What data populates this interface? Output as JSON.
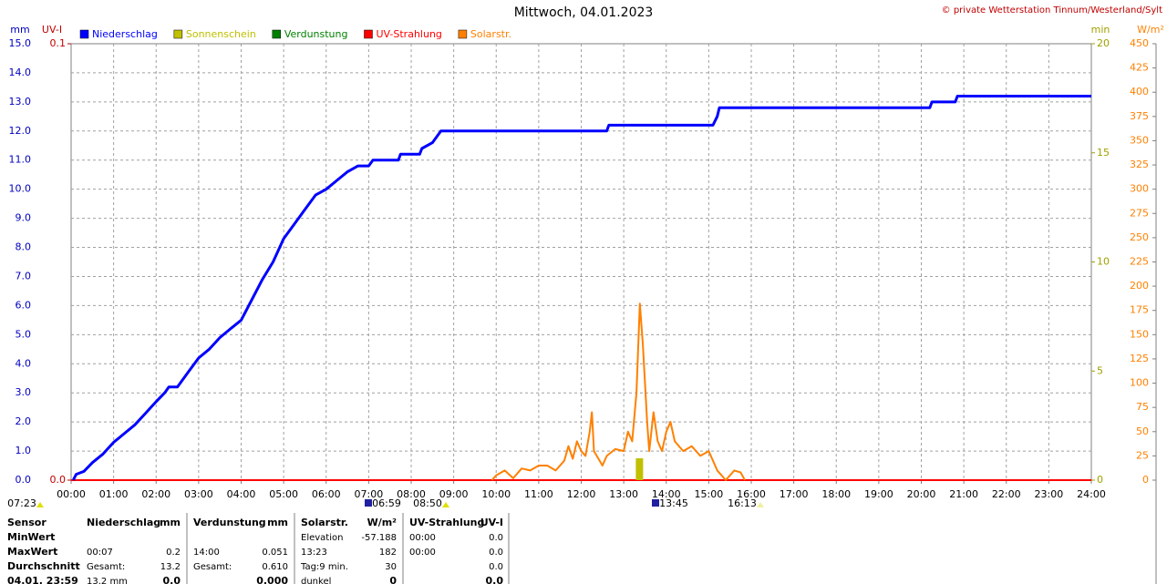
{
  "chart_data": {
    "type": "line",
    "title": "Mittwoch, 04.01.2023",
    "copyright": "© private Wetterstation Tinnum/Westerland/Sylt",
    "xlim": [
      0,
      24
    ],
    "xticks": [
      {
        "value": 0,
        "label": "00:00"
      },
      {
        "value": 1,
        "label": "01:00"
      },
      {
        "value": 2,
        "label": "02:00"
      },
      {
        "value": 3,
        "label": "03:00"
      },
      {
        "value": 4,
        "label": "04:00"
      },
      {
        "value": 5,
        "label": "05:00"
      },
      {
        "value": 6,
        "label": "06:00"
      },
      {
        "value": 7,
        "label": "07:00"
      },
      {
        "value": 8,
        "label": "08:00"
      },
      {
        "value": 9,
        "label": "09:00"
      },
      {
        "value": 10,
        "label": "10:00"
      },
      {
        "value": 11,
        "label": "11:00"
      },
      {
        "value": 12,
        "label": "12:00"
      },
      {
        "value": 13,
        "label": "13:00"
      },
      {
        "value": 14,
        "label": "14:00"
      },
      {
        "value": 15,
        "label": "15:00"
      },
      {
        "value": 16,
        "label": "16:00"
      },
      {
        "value": 17,
        "label": "17:00"
      },
      {
        "value": 18,
        "label": "18:00"
      },
      {
        "value": 19,
        "label": "19:00"
      },
      {
        "value": 20,
        "label": "20:00"
      },
      {
        "value": 21,
        "label": "21:00"
      },
      {
        "value": 22,
        "label": "22:00"
      },
      {
        "value": 23,
        "label": "23:00"
      },
      {
        "value": 24,
        "label": "24:00"
      }
    ],
    "ylabel": "mm",
    "ylim": [
      0,
      15
    ],
    "yticks": [
      {
        "value": 0,
        "label": "0.0"
      },
      {
        "value": 1,
        "label": "1.0"
      },
      {
        "value": 2,
        "label": "2.0"
      },
      {
        "value": 3,
        "label": "3.0"
      },
      {
        "value": 4,
        "label": "4.0"
      },
      {
        "value": 5,
        "label": "5.0"
      },
      {
        "value": 6,
        "label": "6.0"
      },
      {
        "value": 7,
        "label": "7.0"
      },
      {
        "value": 8,
        "label": "8.0"
      },
      {
        "value": 9,
        "label": "9.0"
      },
      {
        "value": 10,
        "label": "10.0"
      },
      {
        "value": 11,
        "label": "11.0"
      },
      {
        "value": 12,
        "label": "12.0"
      },
      {
        "value": 13,
        "label": "13.0"
      },
      {
        "value": 14,
        "label": "14.0"
      },
      {
        "value": 15,
        "label": "15.0"
      }
    ],
    "uvlabel": "UV-I",
    "uvlim": [
      0,
      0.1
    ],
    "uvticks": [
      {
        "value": 0,
        "label": "0.0"
      },
      0.1
    ],
    "y2label": "min",
    "y2lim": [
      0,
      20
    ],
    "y2ticks": [
      0,
      5,
      10,
      15,
      20
    ],
    "y3label": "W/m²",
    "y3lim": [
      0,
      450
    ],
    "y3ticks": [
      0,
      25,
      50,
      75,
      100,
      125,
      150,
      175,
      200,
      225,
      250,
      275,
      300,
      325,
      350,
      375,
      400,
      425,
      450
    ],
    "grid": true,
    "sun_labels": [
      "07:23",
      "06:59",
      "08:50",
      "13:45",
      "16:13"
    ],
    "series": [
      {
        "name": "Niederschlag",
        "color": "#0000ff",
        "axis": "y",
        "type": "line",
        "x": [
          0.05,
          0.12,
          0.3,
          0.5,
          0.75,
          1,
          1.25,
          1.5,
          1.75,
          2,
          2.2,
          2.3,
          2.5,
          2.75,
          3,
          3.25,
          3.5,
          3.75,
          4,
          4.25,
          4.5,
          4.75,
          5,
          5.25,
          5.5,
          5.75,
          6,
          6.25,
          6.5,
          6.75,
          7,
          7.1,
          7.7,
          7.75,
          8.2,
          8.25,
          8.5,
          8.7,
          12.6,
          12.65,
          15.1,
          15.2,
          15.25,
          20.2,
          20.25,
          20.8,
          20.85,
          24
        ],
        "values": [
          0,
          0.2,
          0.3,
          0.6,
          0.9,
          1.3,
          1.6,
          1.9,
          2.3,
          2.7,
          3.0,
          3.2,
          3.2,
          3.7,
          4.2,
          4.5,
          4.9,
          5.2,
          5.5,
          6.2,
          6.9,
          7.5,
          8.3,
          8.8,
          9.3,
          9.8,
          10.0,
          10.3,
          10.6,
          10.8,
          10.8,
          11.0,
          11.0,
          11.2,
          11.2,
          11.4,
          11.6,
          12.0,
          12.0,
          12.2,
          12.2,
          12.5,
          12.8,
          12.8,
          13.0,
          13.0,
          13.2,
          13.2
        ]
      },
      {
        "name": "Sonnenschein",
        "color": "#c0c000",
        "axis": "y2",
        "type": "bar",
        "x": [
          13.37
        ],
        "values": [
          1
        ]
      },
      {
        "name": "Verdunstung",
        "color": "#008000",
        "axis": "y",
        "type": "line",
        "x": [
          0,
          24
        ],
        "values": [
          0,
          0
        ]
      },
      {
        "name": "UV-Strahlung",
        "color": "#ff0000",
        "axis": "uv",
        "type": "line",
        "x": [
          0,
          24
        ],
        "values": [
          0,
          0
        ]
      },
      {
        "name": "Solarstr.",
        "color": "#ff8000",
        "axis": "y3",
        "type": "line",
        "x": [
          9.9,
          10.0,
          10.2,
          10.4,
          10.6,
          10.8,
          11.0,
          11.2,
          11.4,
          11.6,
          11.7,
          11.8,
          11.9,
          12.0,
          12.1,
          12.2,
          12.25,
          12.3,
          12.5,
          12.6,
          12.8,
          13.0,
          13.1,
          13.2,
          13.3,
          13.38,
          13.45,
          13.55,
          13.6,
          13.7,
          13.8,
          13.9,
          14.0,
          14.1,
          14.2,
          14.4,
          14.6,
          14.8,
          15.0,
          15.2,
          15.3,
          15.4,
          15.6,
          15.75,
          15.85
        ],
        "values": [
          0,
          5,
          10,
          2,
          12,
          10,
          15,
          15,
          10,
          20,
          35,
          22,
          40,
          30,
          25,
          50,
          70,
          30,
          15,
          25,
          32,
          30,
          50,
          40,
          90,
          182,
          140,
          60,
          30,
          70,
          40,
          30,
          50,
          60,
          40,
          30,
          35,
          25,
          30,
          10,
          5,
          0,
          10,
          8,
          0
        ]
      }
    ]
  },
  "table": {
    "header": [
      "Sensor",
      "Niederschlag",
      "mm",
      "Verdunstung",
      "mm",
      "Solarstr.",
      "W/m²",
      "UV-Strahlung",
      "UV-I"
    ],
    "rows": [
      [
        "MinWert",
        null,
        null,
        null,
        null,
        "Elevation",
        "-57.188",
        "00:00",
        "0.0"
      ],
      [
        "MaxWert",
        "00:07",
        "0.2",
        "14:00",
        "0.051",
        "13:23",
        "182",
        "00:00",
        "0.0"
      ],
      [
        "Durchschnitt",
        "Gesamt:",
        "13.2",
        "Gesamt:",
        "0.610",
        "Tag:9 min.",
        "30",
        null,
        "0.0"
      ],
      [
        "04.01. 23:59",
        "13.2 mm",
        "0.0",
        null,
        "0.000",
        "dunkel",
        "0",
        null,
        "0.0"
      ]
    ]
  }
}
